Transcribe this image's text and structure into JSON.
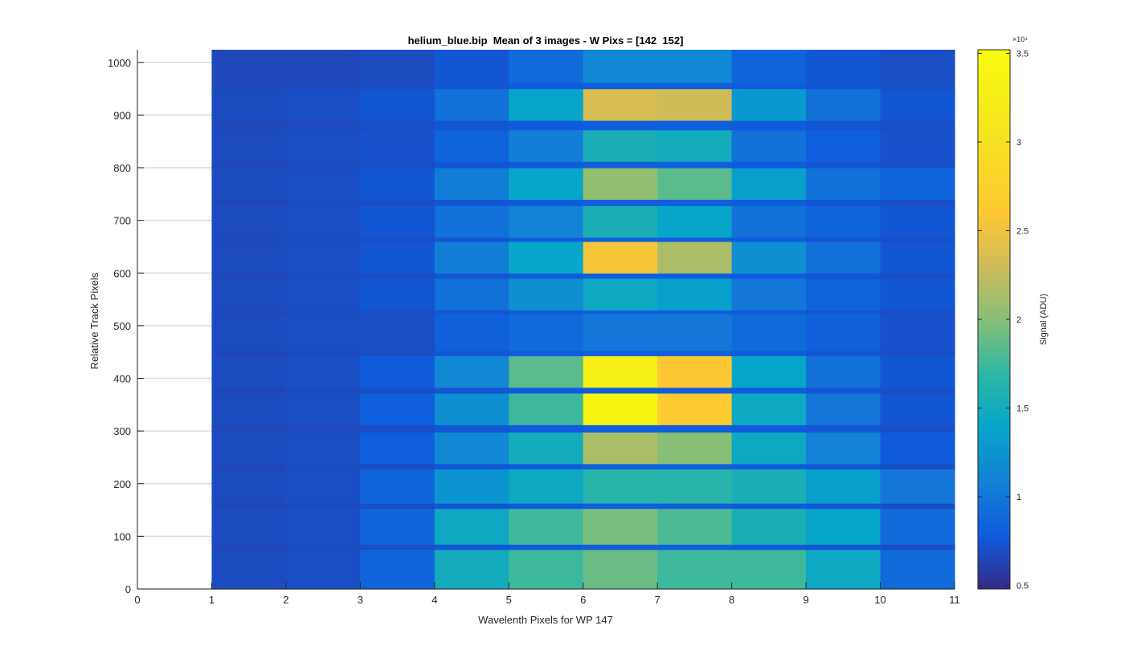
{
  "chart_data": {
    "type": "heatmap",
    "title": "helium_blue.bip  Mean of 3 images - W Pixs = [142  152]",
    "xlabel": "Wavelenth Pixels for WP 147",
    "ylabel": "Relative Track Pixels",
    "xlim": [
      0,
      11
    ],
    "ylim": [
      0,
      1024
    ],
    "xticks": [
      0,
      1,
      2,
      3,
      4,
      5,
      6,
      7,
      8,
      9,
      10,
      11
    ],
    "yticks": [
      0,
      100,
      200,
      300,
      400,
      500,
      600,
      700,
      800,
      900,
      1000
    ],
    "grid": true,
    "colormap": "parula",
    "colorbar": {
      "label": "Signal (ADU)",
      "exponent_label": "×10⁴",
      "clim": [
        0.48,
        3.52
      ],
      "ticks": [
        0.5,
        1,
        1.5,
        2,
        2.5,
        3,
        3.5
      ],
      "tick_labels": [
        "0.5",
        "1",
        "1.5",
        "2",
        "2.5",
        "3",
        "3.5"
      ],
      "scale": 10000
    },
    "columns": [
      1,
      2,
      3,
      4,
      5,
      6,
      7,
      8,
      9,
      10
    ],
    "background_by_column": [
      0.68,
      0.7,
      0.7,
      0.78,
      0.82,
      0.85,
      0.85,
      0.82,
      0.78,
      0.72
    ],
    "bands": [
      {
        "y0": 0,
        "y1": 75,
        "values": [
          0.68,
          0.7,
          0.85,
          1.5,
          1.75,
          1.9,
          1.75,
          1.75,
          1.45,
          0.9
        ]
      },
      {
        "y0": 75,
        "y1": 85,
        "values": [
          0.65,
          0.68,
          0.7,
          0.75,
          0.78,
          0.8,
          0.8,
          0.78,
          0.75,
          0.7
        ]
      },
      {
        "y0": 85,
        "y1": 153,
        "values": [
          0.68,
          0.7,
          0.85,
          1.45,
          1.75,
          1.95,
          1.8,
          1.55,
          1.4,
          0.9
        ]
      },
      {
        "y0": 153,
        "y1": 163,
        "values": [
          0.65,
          0.68,
          0.7,
          0.75,
          0.78,
          0.8,
          0.8,
          0.78,
          0.75,
          0.7
        ]
      },
      {
        "y0": 163,
        "y1": 228,
        "values": [
          0.68,
          0.7,
          0.85,
          1.25,
          1.45,
          1.65,
          1.65,
          1.55,
          1.35,
          1.0
        ]
      },
      {
        "y0": 228,
        "y1": 238,
        "values": [
          0.65,
          0.68,
          0.7,
          0.75,
          0.78,
          0.8,
          0.8,
          0.78,
          0.75,
          0.7
        ]
      },
      {
        "y0": 238,
        "y1": 298,
        "values": [
          0.68,
          0.7,
          0.8,
          1.15,
          1.5,
          2.15,
          2.0,
          1.45,
          1.1,
          0.78
        ]
      },
      {
        "y0": 298,
        "y1": 312,
        "values": [
          0.65,
          0.68,
          0.7,
          0.75,
          0.78,
          0.8,
          0.8,
          0.78,
          0.75,
          0.7
        ]
      },
      {
        "y0": 312,
        "y1": 372,
        "values": [
          0.68,
          0.7,
          0.8,
          1.2,
          1.75,
          3.4,
          2.65,
          1.45,
          1.0,
          0.75
        ]
      },
      {
        "y0": 372,
        "y1": 383,
        "values": [
          0.65,
          0.68,
          0.7,
          0.75,
          0.78,
          0.8,
          0.8,
          0.78,
          0.75,
          0.7
        ]
      },
      {
        "y0": 383,
        "y1": 443,
        "values": [
          0.68,
          0.7,
          0.78,
          1.15,
          1.85,
          3.3,
          2.6,
          1.4,
          0.95,
          0.75
        ]
      },
      {
        "y0": 443,
        "y1": 453,
        "values": [
          0.65,
          0.68,
          0.7,
          0.75,
          0.78,
          0.8,
          0.8,
          0.78,
          0.75,
          0.7
        ]
      },
      {
        "y0": 453,
        "y1": 523,
        "values": [
          0.68,
          0.7,
          0.7,
          0.82,
          0.9,
          1.0,
          1.0,
          0.9,
          0.82,
          0.72
        ]
      },
      {
        "y0": 523,
        "y1": 530,
        "values": [
          0.65,
          0.68,
          0.7,
          0.75,
          0.78,
          0.8,
          0.8,
          0.78,
          0.75,
          0.7
        ]
      },
      {
        "y0": 530,
        "y1": 590,
        "values": [
          0.68,
          0.7,
          0.75,
          0.95,
          1.2,
          1.45,
          1.35,
          1.0,
          0.85,
          0.75
        ]
      },
      {
        "y0": 590,
        "y1": 600,
        "values": [
          0.65,
          0.68,
          0.7,
          0.75,
          0.78,
          0.8,
          0.8,
          0.78,
          0.75,
          0.7
        ]
      },
      {
        "y0": 600,
        "y1": 660,
        "values": [
          0.68,
          0.7,
          0.75,
          1.05,
          1.4,
          2.55,
          2.15,
          1.2,
          0.95,
          0.75
        ]
      },
      {
        "y0": 660,
        "y1": 668,
        "values": [
          0.65,
          0.68,
          0.7,
          0.75,
          0.78,
          0.8,
          0.8,
          0.78,
          0.75,
          0.7
        ]
      },
      {
        "y0": 668,
        "y1": 728,
        "values": [
          0.68,
          0.7,
          0.75,
          0.95,
          1.1,
          1.55,
          1.4,
          0.95,
          0.85,
          0.75
        ]
      },
      {
        "y0": 728,
        "y1": 740,
        "values": [
          0.65,
          0.68,
          0.7,
          0.75,
          0.78,
          0.8,
          0.8,
          0.78,
          0.75,
          0.7
        ]
      },
      {
        "y0": 740,
        "y1": 800,
        "values": [
          0.68,
          0.7,
          0.75,
          1.05,
          1.4,
          2.05,
          1.85,
          1.35,
          0.95,
          0.85
        ]
      },
      {
        "y0": 800,
        "y1": 812,
        "values": [
          0.65,
          0.68,
          0.7,
          0.75,
          0.78,
          0.8,
          0.8,
          0.78,
          0.75,
          0.7
        ]
      },
      {
        "y0": 812,
        "y1": 872,
        "values": [
          0.68,
          0.7,
          0.72,
          0.85,
          1.05,
          1.55,
          1.5,
          0.95,
          0.8,
          0.72
        ]
      },
      {
        "y0": 872,
        "y1": 890,
        "values": [
          0.65,
          0.68,
          0.7,
          0.75,
          0.78,
          0.8,
          0.8,
          0.78,
          0.75,
          0.7
        ]
      },
      {
        "y0": 890,
        "y1": 950,
        "values": [
          0.68,
          0.7,
          0.75,
          0.95,
          1.4,
          2.35,
          2.3,
          1.3,
          0.95,
          0.75
        ]
      },
      {
        "y0": 950,
        "y1": 962,
        "values": [
          0.65,
          0.68,
          0.7,
          0.75,
          0.78,
          0.8,
          0.8,
          0.78,
          0.75,
          0.7
        ]
      },
      {
        "y0": 962,
        "y1": 1024,
        "values": [
          0.66,
          0.66,
          0.68,
          0.75,
          0.9,
          1.15,
          1.15,
          0.85,
          0.75,
          0.7
        ]
      }
    ]
  }
}
